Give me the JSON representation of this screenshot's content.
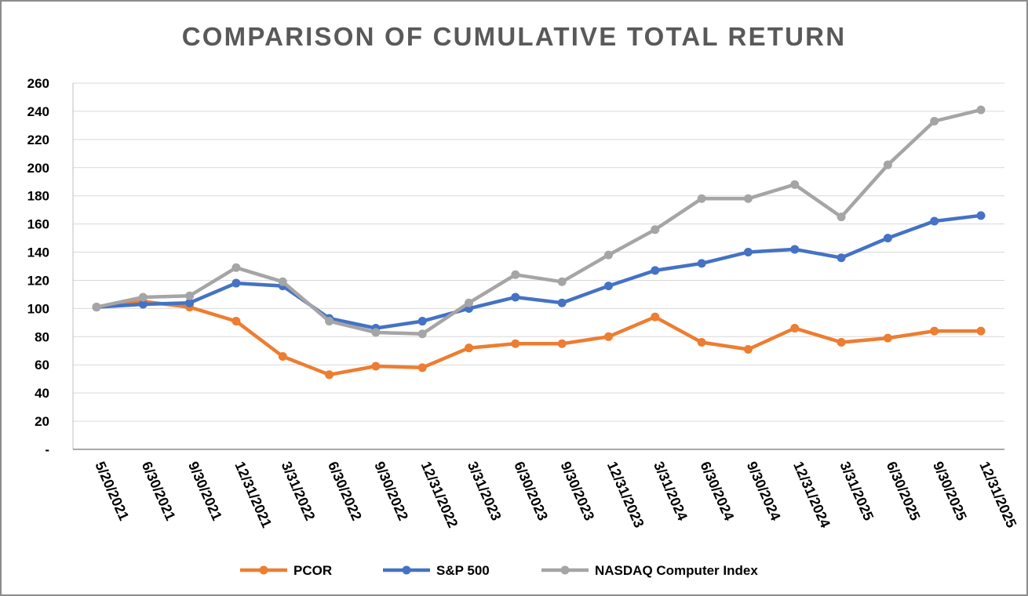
{
  "chart_data": {
    "type": "line",
    "title": "COMPARISON OF CUMULATIVE TOTAL RETURN",
    "xlabel": "",
    "ylabel": "",
    "ylim": [
      0,
      260
    ],
    "y_ticks": [
      {
        "value": 0,
        "label": "-"
      },
      {
        "value": 20,
        "label": "20"
      },
      {
        "value": 40,
        "label": "40"
      },
      {
        "value": 60,
        "label": "60"
      },
      {
        "value": 80,
        "label": "80"
      },
      {
        "value": 100,
        "label": "100"
      },
      {
        "value": 120,
        "label": "120"
      },
      {
        "value": 140,
        "label": "140"
      },
      {
        "value": 160,
        "label": "160"
      },
      {
        "value": 180,
        "label": "180"
      },
      {
        "value": 200,
        "label": "200"
      },
      {
        "value": 220,
        "label": "220"
      },
      {
        "value": 240,
        "label": "240"
      },
      {
        "value": 260,
        "label": "260"
      }
    ],
    "grid": true,
    "legend_position": "bottom",
    "categories": [
      "5/20/2021",
      "6/30/2021",
      "9/30/2021",
      "12/31/2021",
      "3/31/2022",
      "6/30/2022",
      "9/30/2022",
      "12/31/2022",
      "3/31/2023",
      "6/30/2023",
      "9/30/2023",
      "12/31/2023",
      "3/31/2024",
      "6/30/2024",
      "9/30/2024",
      "12/31/2024",
      "3/31/2025",
      "6/30/2025",
      "9/30/2025",
      "12/31/2025"
    ],
    "series": [
      {
        "name": "PCOR",
        "color": "#ed7d31",
        "values": [
          101,
          105,
          101,
          91,
          66,
          53,
          59,
          58,
          72,
          75,
          75,
          80,
          94,
          76,
          71,
          86,
          76,
          79,
          84,
          84
        ]
      },
      {
        "name": "S&P 500",
        "color": "#4472c4",
        "values": [
          101,
          103,
          104,
          118,
          116,
          93,
          86,
          91,
          100,
          108,
          104,
          116,
          127,
          132,
          140,
          142,
          136,
          150,
          162,
          166
        ]
      },
      {
        "name": "NASDAQ Computer Index",
        "color": "#a5a5a5",
        "values": [
          101,
          108,
          109,
          129,
          119,
          91,
          83,
          82,
          104,
          124,
          119,
          138,
          156,
          178,
          178,
          188,
          165,
          202,
          233,
          241
        ]
      }
    ]
  }
}
